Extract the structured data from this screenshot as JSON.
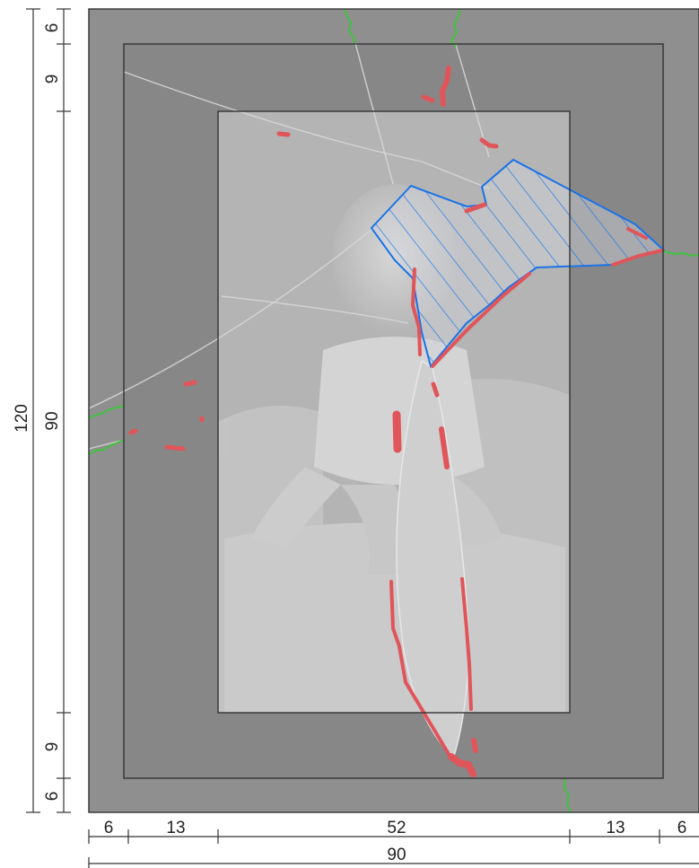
{
  "document": {
    "subject": "glass plate negative condition diagram",
    "colors": {
      "plate": "#8f8f8f",
      "image_area": "#b4b4b4",
      "frame_lines": "#333333",
      "loss_region_outline": "#1a73e8",
      "flaking_marks": "#e0555a",
      "edge_cracks": "#3ec43e",
      "fracture_lines": "#d8d8d8",
      "dimension_lines": "#333333"
    }
  },
  "dimensions": {
    "horizontal_segments": [
      "6",
      "13",
      "52",
      "13",
      "6"
    ],
    "horizontal_total": "90",
    "vertical_segments": [
      "6",
      "9",
      "90",
      "9",
      "6"
    ],
    "vertical_total": "120"
  },
  "legend_markup": {
    "loss_region": "blue hatched area",
    "flaking": "red marks",
    "cracks": "green lines"
  }
}
